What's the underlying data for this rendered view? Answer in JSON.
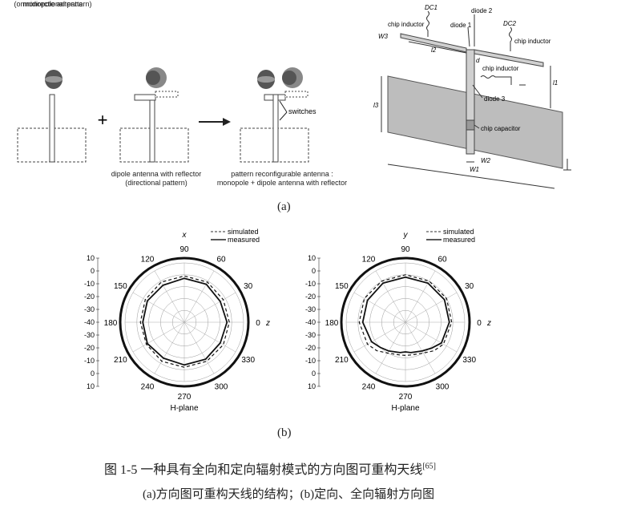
{
  "panel_a": {
    "monopole_label": "monopole antenna",
    "monopole_sub": "(omnidirectional pattern)",
    "dipole_label": "dipole antenna with reflector",
    "dipole_sub": "(directional pattern)",
    "reconf_label": "pattern reconfigurable antenna :",
    "reconf_sub": "monopole + dipole antenna with reflector",
    "switches": "switches",
    "plus": "+",
    "struct": {
      "chip_inductor_1": "chip inductor",
      "dc1": "DC1",
      "diode2": "diode 2",
      "diode1": "diode 1",
      "dc2": "DC2",
      "chip_inductor_2": "chip inductor",
      "chip_inductor_3": "chip inductor",
      "w3": "W3",
      "l2": "l2",
      "d": "d",
      "l1": "l1",
      "l3": "l3",
      "diode3": "diode 3",
      "chip_capacitor": "chip capacitor",
      "w2": "W2",
      "w1": "W1"
    },
    "label": "(a)"
  },
  "panel_b": {
    "legend_simulated": "simulated",
    "legend_measured": "measured",
    "plane_label": "H-plane",
    "plot_left_axis": "x",
    "plot_right_axis": "y",
    "z_label": "z",
    "zero_label": "0",
    "label": "(b)"
  },
  "caption": {
    "title": "图 1-5  一种具有全向和定向辐射模式的方向图可重构天线",
    "ref": "[65]",
    "sub": "(a)方向图可重构天线的结构；(b)定向、全向辐射方向图"
  },
  "chart_data": [
    {
      "type": "polar",
      "axis_label": "x",
      "angle_ticks": [
        "90",
        "60",
        "30",
        "0",
        "330",
        "300",
        "270",
        "240",
        "210",
        "180",
        "150",
        "120"
      ],
      "radial_ticks": [
        "10",
        "0",
        "-10",
        "-20",
        "-30",
        "-40",
        "-30",
        "-20",
        "-10",
        "0",
        "10"
      ],
      "rlim": [
        -40,
        10
      ],
      "series": [
        {
          "name": "simulated",
          "style": "dashed",
          "angles": [
            0,
            30,
            60,
            90,
            120,
            150,
            180,
            210,
            240,
            270,
            300,
            330
          ],
          "values": [
            -2,
            -2,
            -1,
            -1,
            -1,
            -2,
            -3,
            -3,
            -2,
            -2,
            -2,
            -2
          ]
        },
        {
          "name": "measured",
          "style": "solid",
          "angles": [
            0,
            30,
            60,
            90,
            120,
            150,
            180,
            210,
            240,
            270,
            300,
            330
          ],
          "values": [
            -4,
            -5,
            -3,
            -3,
            -4,
            -4,
            -5,
            -4,
            -5,
            -4,
            -4,
            -5
          ]
        }
      ],
      "xlabel": "H-plane"
    },
    {
      "type": "polar",
      "axis_label": "y",
      "angle_ticks": [
        "90",
        "60",
        "30",
        "0",
        "330",
        "300",
        "270",
        "240",
        "210",
        "180",
        "150",
        "120"
      ],
      "radial_ticks": [
        "10",
        "0",
        "-10",
        "-20",
        "-30",
        "-40",
        "-30",
        "-20",
        "-10",
        "0",
        "10"
      ],
      "rlim": [
        -40,
        10
      ],
      "series": [
        {
          "name": "simulated",
          "style": "dashed",
          "angles": [
            0,
            30,
            60,
            90,
            120,
            150,
            180,
            210,
            225,
            240,
            260,
            270,
            280,
            300,
            315,
            330
          ],
          "values": [
            -1,
            0,
            0,
            0,
            0,
            0,
            -1,
            -3,
            -6,
            -10,
            -12,
            -12,
            -12,
            -10,
            -6,
            -3
          ]
        },
        {
          "name": "measured",
          "style": "solid",
          "angles": [
            0,
            30,
            60,
            90,
            120,
            150,
            180,
            210,
            225,
            240,
            260,
            270,
            280,
            300,
            315,
            330
          ],
          "values": [
            -3,
            -2,
            -2,
            -2,
            -2,
            -3,
            -4,
            -7,
            -10,
            -12,
            -14,
            -15,
            -14,
            -12,
            -9,
            -5
          ]
        }
      ],
      "xlabel": "H-plane"
    }
  ]
}
